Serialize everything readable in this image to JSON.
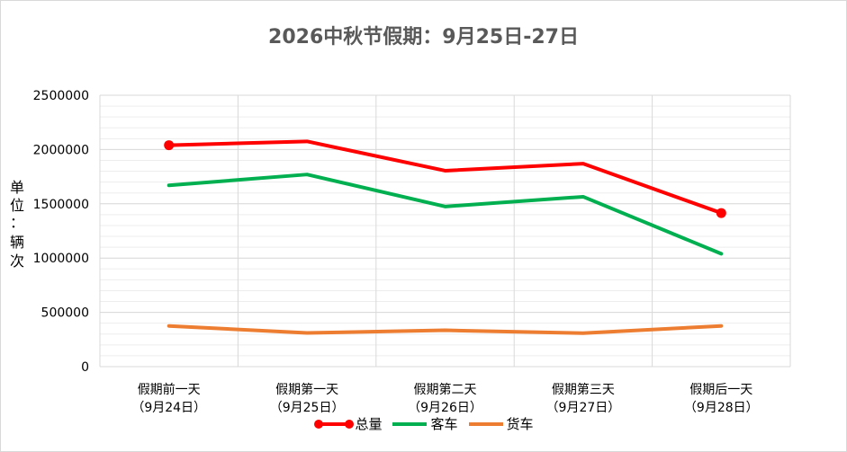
{
  "chart_data": {
    "type": "line",
    "title": "2026中秋节假期：9月25日-27日",
    "ylabel_chars": [
      "单",
      "位",
      "：",
      "辆",
      "次"
    ],
    "categories": [
      [
        "假期前一天",
        "（9月24日）"
      ],
      [
        "假期第一天",
        "（9月25日）"
      ],
      [
        "假期第二天",
        "（9月26日）"
      ],
      [
        "假期第三天",
        "（9月27日）"
      ],
      [
        "假期后一天",
        "（9月28日）"
      ]
    ],
    "ylim": [
      0,
      2500000
    ],
    "yticks": [
      0,
      500000,
      1000000,
      1500000,
      2000000,
      2500000
    ],
    "grid": true,
    "legend_position": "bottom",
    "series": [
      {
        "name": "总量",
        "color": "#ff0000",
        "values": [
          2040000,
          2075000,
          1805000,
          1870000,
          1415000
        ],
        "end_markers": true
      },
      {
        "name": "客车",
        "color": "#00b050",
        "values": [
          1670000,
          1770000,
          1475000,
          1565000,
          1040000
        ],
        "end_markers": false
      },
      {
        "name": "货车",
        "color": "#ed7d31",
        "values": [
          375000,
          310000,
          335000,
          308000,
          375000
        ],
        "end_markers": false
      }
    ]
  }
}
